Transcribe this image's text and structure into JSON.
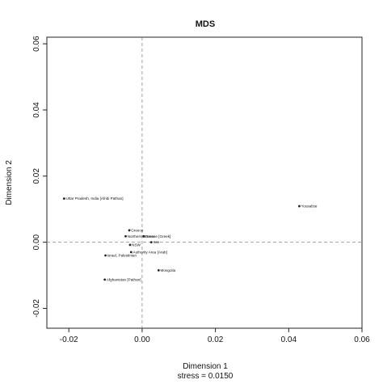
{
  "chart_data": {
    "type": "scatter",
    "title": "MDS",
    "xlabel": "Dimension 1",
    "ylabel": "Dimension 2",
    "footnote": "stress = 0.0150",
    "xlim": [
      -0.026,
      0.06
    ],
    "ylim": [
      -0.026,
      0.062
    ],
    "xticks": [
      -0.02,
      0.0,
      0.02,
      0.04,
      0.06
    ],
    "xtick_labels": [
      "-0.02",
      "0.00",
      "0.02",
      "0.04",
      "0.06"
    ],
    "yticks": [
      -0.02,
      0.0,
      0.02,
      0.04,
      0.06
    ],
    "ytick_labels": [
      "-0.02",
      "0.00",
      "0.02",
      "0.04",
      "0.06"
    ],
    "grid": false,
    "reference_lines": {
      "x": 0,
      "y": 0
    },
    "points": [
      {
        "label": "Uttar Pradesh, India [Afridi Pathan]",
        "x": -0.0213,
        "y": 0.0132
      },
      {
        "label": "Yousafzai",
        "x": 0.0429,
        "y": 0.0109
      },
      {
        "label": "Greece",
        "x": -0.0035,
        "y": 0.0036
      },
      {
        "label": "Northern Greece",
        "x": -0.0045,
        "y": 0.0018
      },
      {
        "label": "Greece [Greek]",
        "x": 0.0004,
        "y": 0.0018
      },
      {
        "label": "Iran",
        "x": 0.0025,
        "y": 0.0
      },
      {
        "label": "NSW",
        "x": -0.0033,
        "y": -0.0008
      },
      {
        "label": "Authority Area [Arab]",
        "x": -0.003,
        "y": -0.003
      },
      {
        "label": "Israel, Palestinian",
        "x": -0.01,
        "y": -0.004
      },
      {
        "label": "Mongolia",
        "x": 0.0045,
        "y": -0.0085
      },
      {
        "label": "Afghanistan [Pathan]",
        "x": -0.0102,
        "y": -0.0113
      }
    ]
  }
}
